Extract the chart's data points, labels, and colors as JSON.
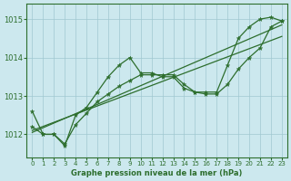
{
  "title": "Graphe pression niveau de la mer (hPa)",
  "bg_color": "#cce8ee",
  "line_color": "#2d6e2d",
  "grid_color": "#a0c8d0",
  "xlim": [
    -0.5,
    23.5
  ],
  "ylim": [
    1011.4,
    1015.4
  ],
  "yticks": [
    1012,
    1013,
    1014,
    1015
  ],
  "xticks": [
    0,
    1,
    2,
    3,
    4,
    5,
    6,
    7,
    8,
    9,
    10,
    11,
    12,
    13,
    14,
    15,
    16,
    17,
    18,
    19,
    20,
    21,
    22,
    23
  ],
  "series_with_markers": [
    [
      1012.6,
      1012.0,
      1012.0,
      1011.7,
      1012.5,
      1012.7,
      1013.1,
      1013.5,
      1013.8,
      1014.0,
      1013.6,
      1013.6,
      1013.5,
      1013.5,
      1013.2,
      1013.1,
      1013.1,
      1013.1,
      1013.8,
      1014.5,
      1014.8,
      1015.0,
      1015.05,
      1014.95
    ],
    [
      1012.2,
      1012.0,
      1012.0,
      1011.75,
      1012.25,
      1012.55,
      1012.85,
      1013.05,
      1013.25,
      1013.4,
      1013.55,
      1013.55,
      1013.55,
      1013.55,
      1013.3,
      1013.1,
      1013.05,
      1013.05,
      1013.3,
      1013.7,
      1014.0,
      1014.25,
      1014.8,
      1014.95
    ]
  ],
  "series_straight": [
    [
      [
        0,
        23
      ],
      [
        1012.1,
        1014.55
      ]
    ],
    [
      [
        0,
        23
      ],
      [
        1012.05,
        1014.85
      ]
    ]
  ]
}
